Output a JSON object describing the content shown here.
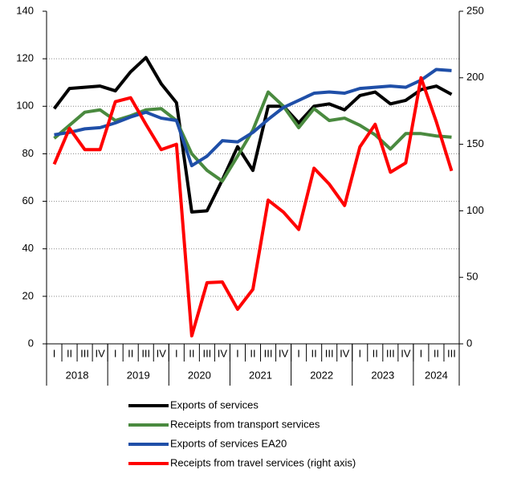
{
  "chart_data": {
    "type": "line",
    "categories": [
      "I",
      "II",
      "III",
      "IV",
      "I",
      "II",
      "III",
      "IV",
      "I",
      "II",
      "III",
      "IV",
      "I",
      "II",
      "III",
      "IV",
      "I",
      "II",
      "III",
      "IV",
      "I",
      "II",
      "III",
      "IV",
      "I",
      "II",
      "III"
    ],
    "groups": [
      "2018",
      "2019",
      "2020",
      "2021",
      "2022",
      "2023",
      "2024"
    ],
    "ylim": [
      0,
      140
    ],
    "yticks": [
      0,
      20,
      40,
      60,
      80,
      100,
      120,
      140
    ],
    "y2lim": [
      0,
      250
    ],
    "y2ticks": [
      0,
      50,
      100,
      150,
      200,
      250
    ],
    "grid": true,
    "series": [
      {
        "name": "Exports of services",
        "color": "#000000",
        "values": [
          99,
          107.5,
          108,
          108.5,
          106.5,
          114.5,
          120.5,
          109.5,
          101.5,
          55.5,
          56,
          69,
          83,
          73,
          100,
          100,
          93,
          100,
          101,
          98.5,
          104.5,
          106,
          101,
          102.5,
          107,
          108.5,
          105
        ]
      },
      {
        "name": "Receipts from transport services",
        "color": "#4a8a3f",
        "values": [
          86.5,
          92,
          97.5,
          98.5,
          94,
          96,
          98.5,
          99,
          94,
          80,
          73,
          68.5,
          79,
          90,
          106,
          100,
          91,
          99,
          94,
          95,
          92,
          88,
          82,
          88.5,
          88.5,
          87.5,
          87
        ]
      },
      {
        "name": "Exports of services EA20",
        "color": "#1f4fa8",
        "values": [
          88,
          89,
          90.5,
          91,
          93,
          95.5,
          97.5,
          95,
          94,
          75,
          79,
          85.5,
          85,
          89,
          94.5,
          99.5,
          102.5,
          105.5,
          106,
          105.5,
          107.5,
          108,
          108.5,
          108,
          111,
          115.5,
          115
        ]
      },
      {
        "name": "Receipts from travel services (right axis)",
        "color": "#ff0000",
        "axis": "y2",
        "values": [
          135,
          162,
          146,
          146,
          182,
          185,
          165,
          146,
          150,
          6,
          46,
          46.5,
          26,
          41,
          108,
          99,
          86,
          132,
          120,
          104,
          148,
          165,
          129,
          136,
          200,
          167,
          130
        ]
      }
    ]
  }
}
